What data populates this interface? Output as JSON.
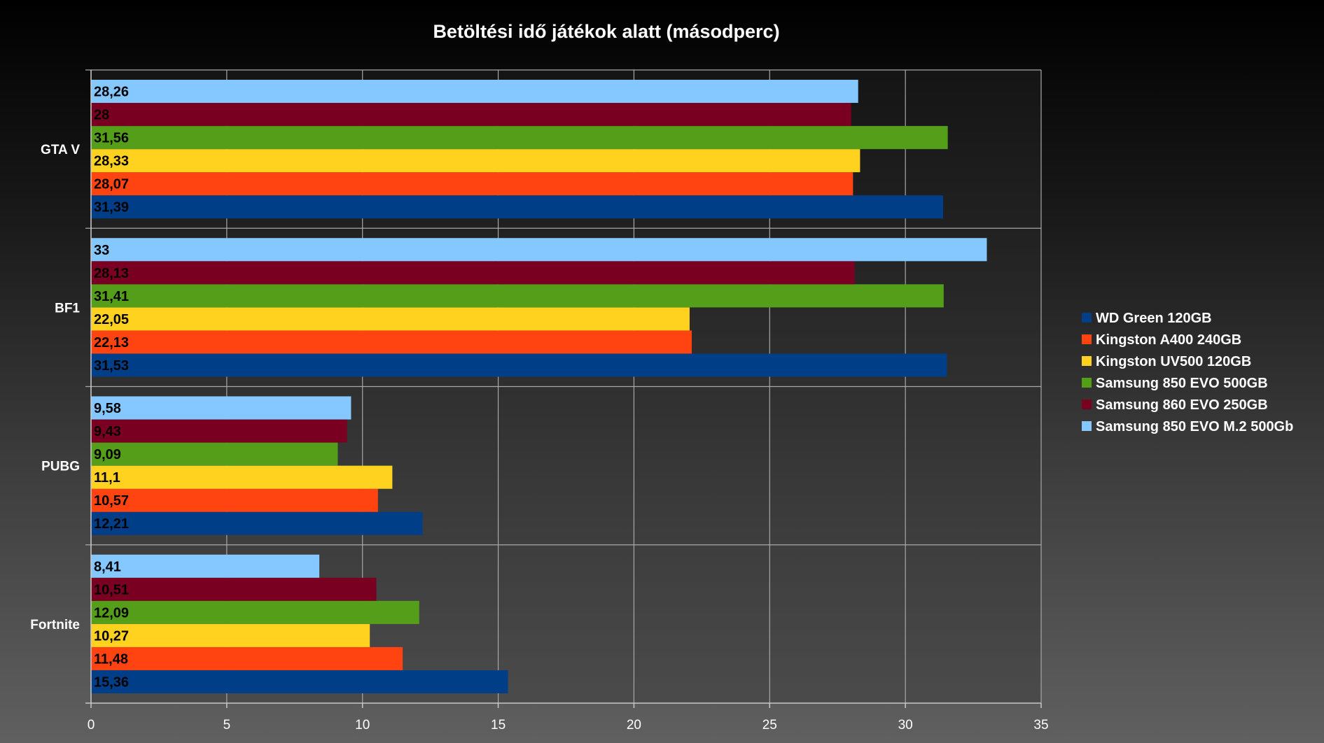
{
  "chart_data": {
    "type": "bar",
    "orientation": "horizontal",
    "title": "Betöltési idő játékok alatt (másodperc)",
    "categories": [
      "GTA V",
      "BF1",
      "PUBG",
      "Fortnite"
    ],
    "series": [
      {
        "name": "WD Green 120GB",
        "color": "#003f87",
        "values": [
          31.39,
          31.53,
          12.21,
          15.36
        ],
        "labels": [
          "31,39",
          "31,53",
          "12,21",
          "15,36"
        ]
      },
      {
        "name": "Kingston A400 240GB",
        "color": "#ff4411",
        "values": [
          28.07,
          22.13,
          10.57,
          11.48
        ],
        "labels": [
          "28,07",
          "22,13",
          "10,57",
          "11,48"
        ]
      },
      {
        "name": "Kingston UV500 120GB",
        "color": "#ffd21f",
        "values": [
          28.33,
          22.05,
          11.1,
          10.27
        ],
        "labels": [
          "28,33",
          "22,05",
          "11,1",
          "10,27"
        ]
      },
      {
        "name": "Samsung 850 EVO 500GB",
        "color": "#559e1a",
        "values": [
          31.56,
          31.41,
          9.09,
          12.09
        ],
        "labels": [
          "31,56",
          "31,41",
          "9,09",
          "12,09"
        ]
      },
      {
        "name": "Samsung 860 EVO 250GB",
        "color": "#7a0022",
        "values": [
          28,
          28.13,
          9.43,
          10.51
        ],
        "labels": [
          "28",
          "28,13",
          "9,43",
          "10,51"
        ]
      },
      {
        "name": "Samsung 850 EVO M.2 500Gb",
        "color": "#84c8ff",
        "values": [
          28.26,
          33,
          9.58,
          8.41
        ],
        "labels": [
          "28,26",
          "33",
          "9,58",
          "8,41"
        ]
      }
    ],
    "xlim": [
      0,
      35
    ],
    "xticks": [
      0,
      5,
      10,
      15,
      20,
      25,
      30,
      35
    ],
    "grid": true,
    "legend_position": "right"
  }
}
